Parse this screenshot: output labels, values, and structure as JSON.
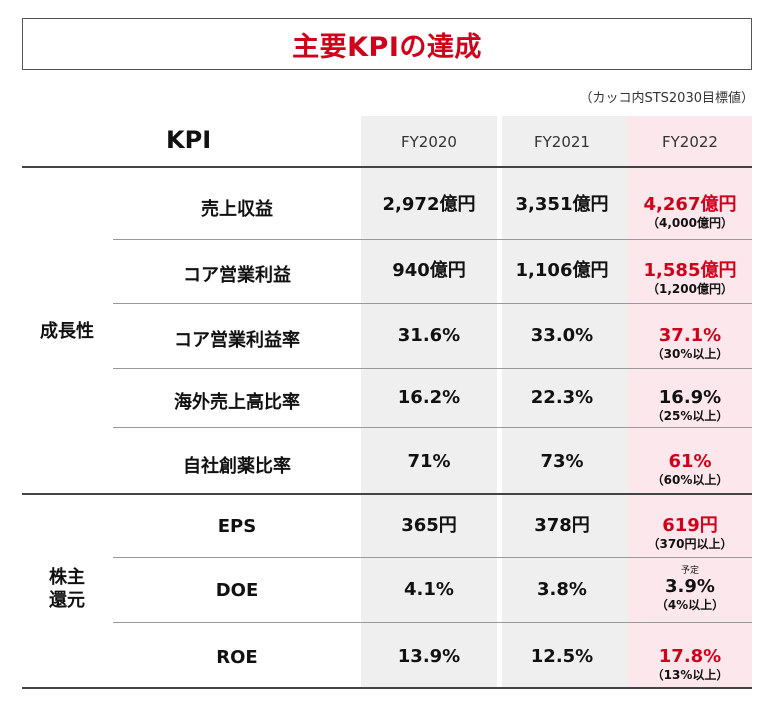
{
  "title": "主要KPIの達成",
  "note": "（カッコ内STS2030目標値）",
  "header": {
    "kpi": "KPI",
    "years": [
      "FY2020",
      "FY2021",
      "FY2022"
    ]
  },
  "groups": {
    "growth": "成長性",
    "shareholder_line1": "株主",
    "shareholder_line2": "還元"
  },
  "rows": [
    {
      "label": "売上収益",
      "fy2020": "2,972億円",
      "fy2021": "3,351億円",
      "fy2022": "4,267億円",
      "target": "（4,000億円）",
      "fy2022_red": true
    },
    {
      "label": "コア営業利益",
      "fy2020": "940億円",
      "fy2021": "1,106億円",
      "fy2022": "1,585億円",
      "target": "（1,200億円）",
      "fy2022_red": true
    },
    {
      "label": "コア営業利益率",
      "fy2020": "31.6%",
      "fy2021": "33.0%",
      "fy2022": "37.1%",
      "target": "（30%以上）",
      "fy2022_red": true
    },
    {
      "label": "海外売上高比率",
      "fy2020": "16.2%",
      "fy2021": "22.3%",
      "fy2022": "16.9%",
      "target": "（25%以上）",
      "fy2022_red": false
    },
    {
      "label": "自社創薬比率",
      "fy2020": "71%",
      "fy2021": "73%",
      "fy2022": "61%",
      "target": "（60%以上）",
      "fy2022_red": true
    },
    {
      "label": "EPS",
      "fy2020": "365円",
      "fy2021": "378円",
      "fy2022": "619円",
      "target": "（370円以上）",
      "fy2022_red": true
    },
    {
      "label": "DOE",
      "fy2020": "4.1%",
      "fy2021": "3.8%",
      "fy2022": "3.9%",
      "target": "（4%以上）",
      "fy2022_red": false,
      "annotation": "予定"
    },
    {
      "label": "ROE",
      "fy2020": "13.9%",
      "fy2021": "12.5%",
      "fy2022": "17.8%",
      "target": "（13%以上）",
      "fy2022_red": true
    }
  ],
  "colors": {
    "accent_red": "#d0021b",
    "gray_col": "#efefef",
    "pink_col": "#fce8ec"
  }
}
